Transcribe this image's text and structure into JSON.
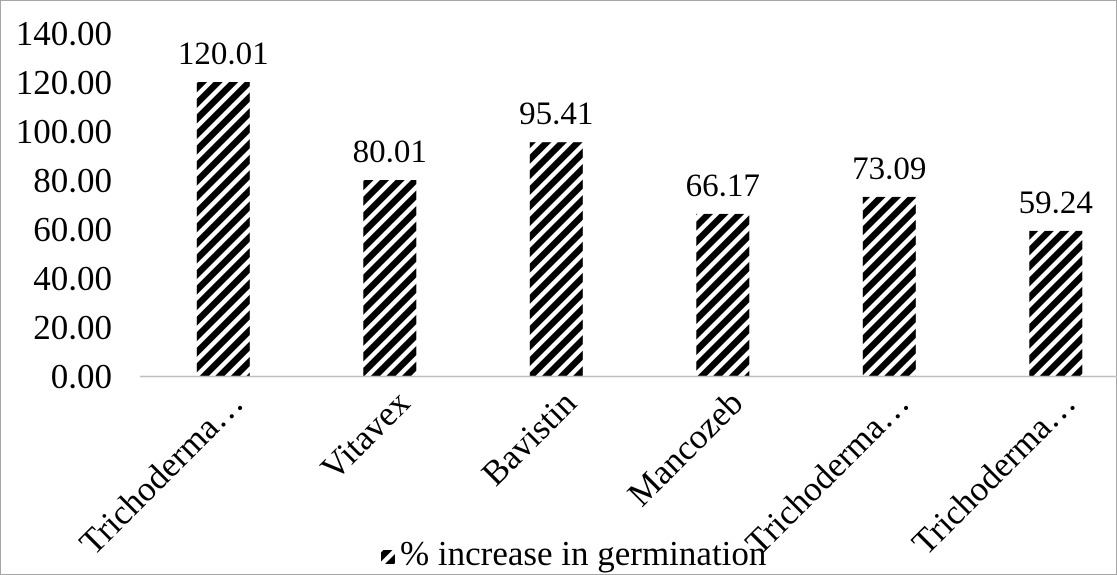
{
  "chart_data": {
    "type": "bar",
    "categories": [
      "Trichoderma…",
      "Vitavex",
      "Bavistin",
      "Mancozeb",
      "Trichoderma…",
      "Trichoderma…"
    ],
    "series": [
      {
        "name": "% increase in germination",
        "values": [
          120.01,
          80.01,
          95.41,
          66.17,
          73.09,
          59.24
        ]
      }
    ],
    "ylim": [
      0,
      140
    ],
    "yticks": [
      "0.00",
      "20.00",
      "40.00",
      "60.00",
      "80.00",
      "100.00",
      "120.00",
      "140.00"
    ],
    "data_labels_shown": true,
    "grid": false,
    "legend": "bottom",
    "colors": {
      "bar_hatch": "#000000",
      "bar_gap": "#ffffff",
      "axis_line": "#bfbfbf",
      "frame": "#a6a6a6",
      "text": "#000000"
    }
  }
}
